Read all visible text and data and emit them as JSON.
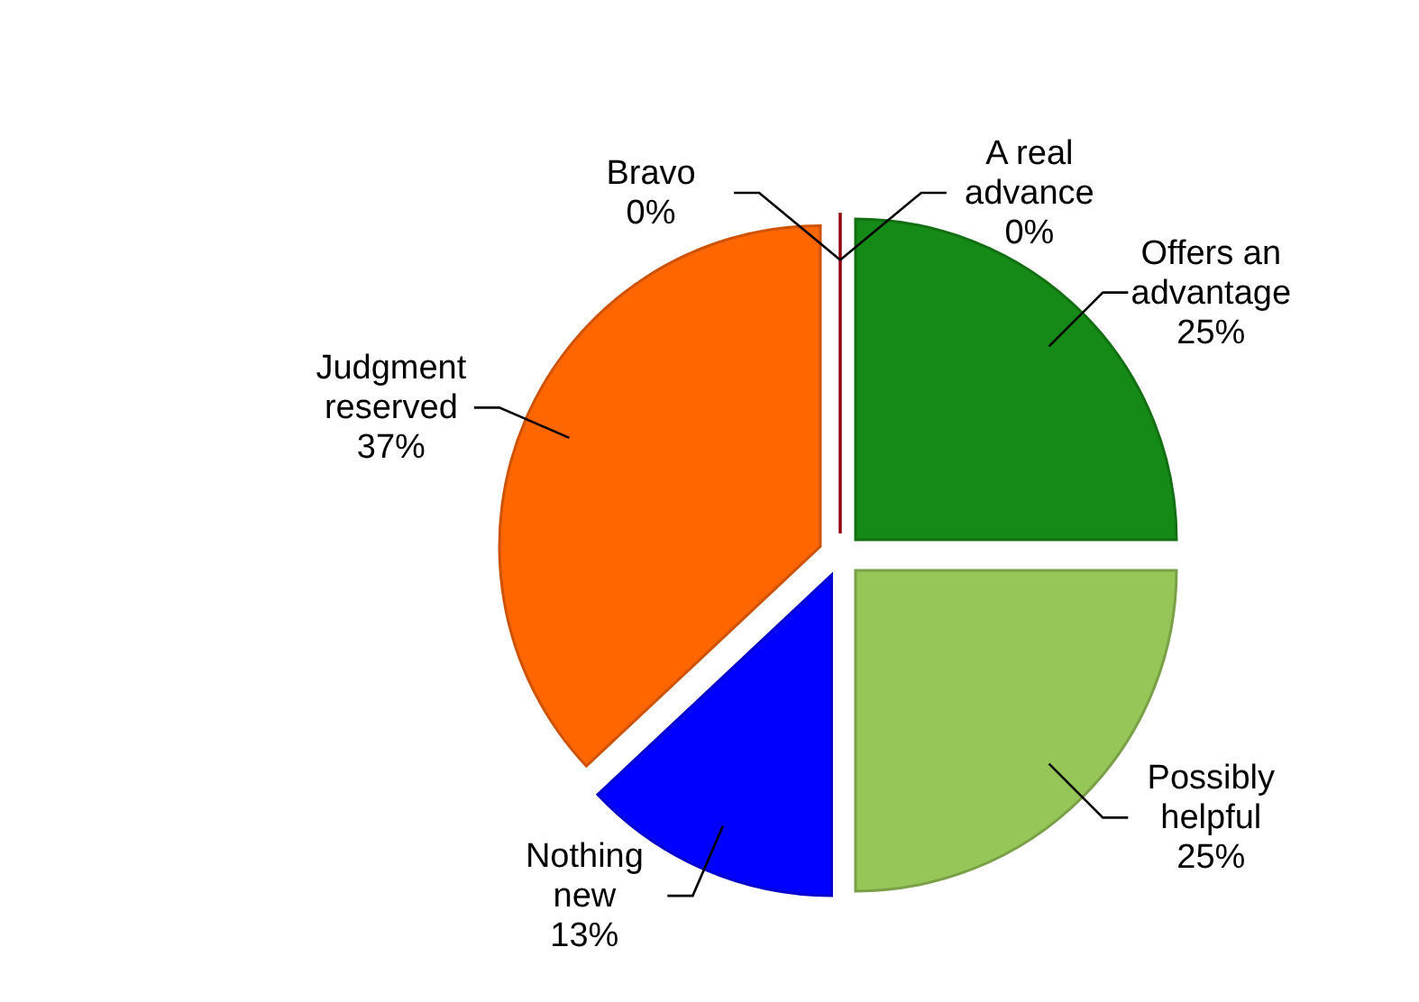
{
  "chart_data": {
    "type": "pie",
    "categories": [
      "A real advance",
      "Offers an advantage",
      "Possibly helpful",
      "Nothing new",
      "Judgment reserved",
      "Bravo"
    ],
    "values": [
      0,
      25,
      25,
      13,
      37,
      0
    ],
    "colors": [
      "#7030a0",
      "#168a16",
      "#96c657",
      "#0000ff",
      "#ff6600",
      "#c00000"
    ],
    "value_labels": [
      "0%",
      "25%",
      "25%",
      "13%",
      "37%",
      "0%"
    ],
    "legend": false
  }
}
